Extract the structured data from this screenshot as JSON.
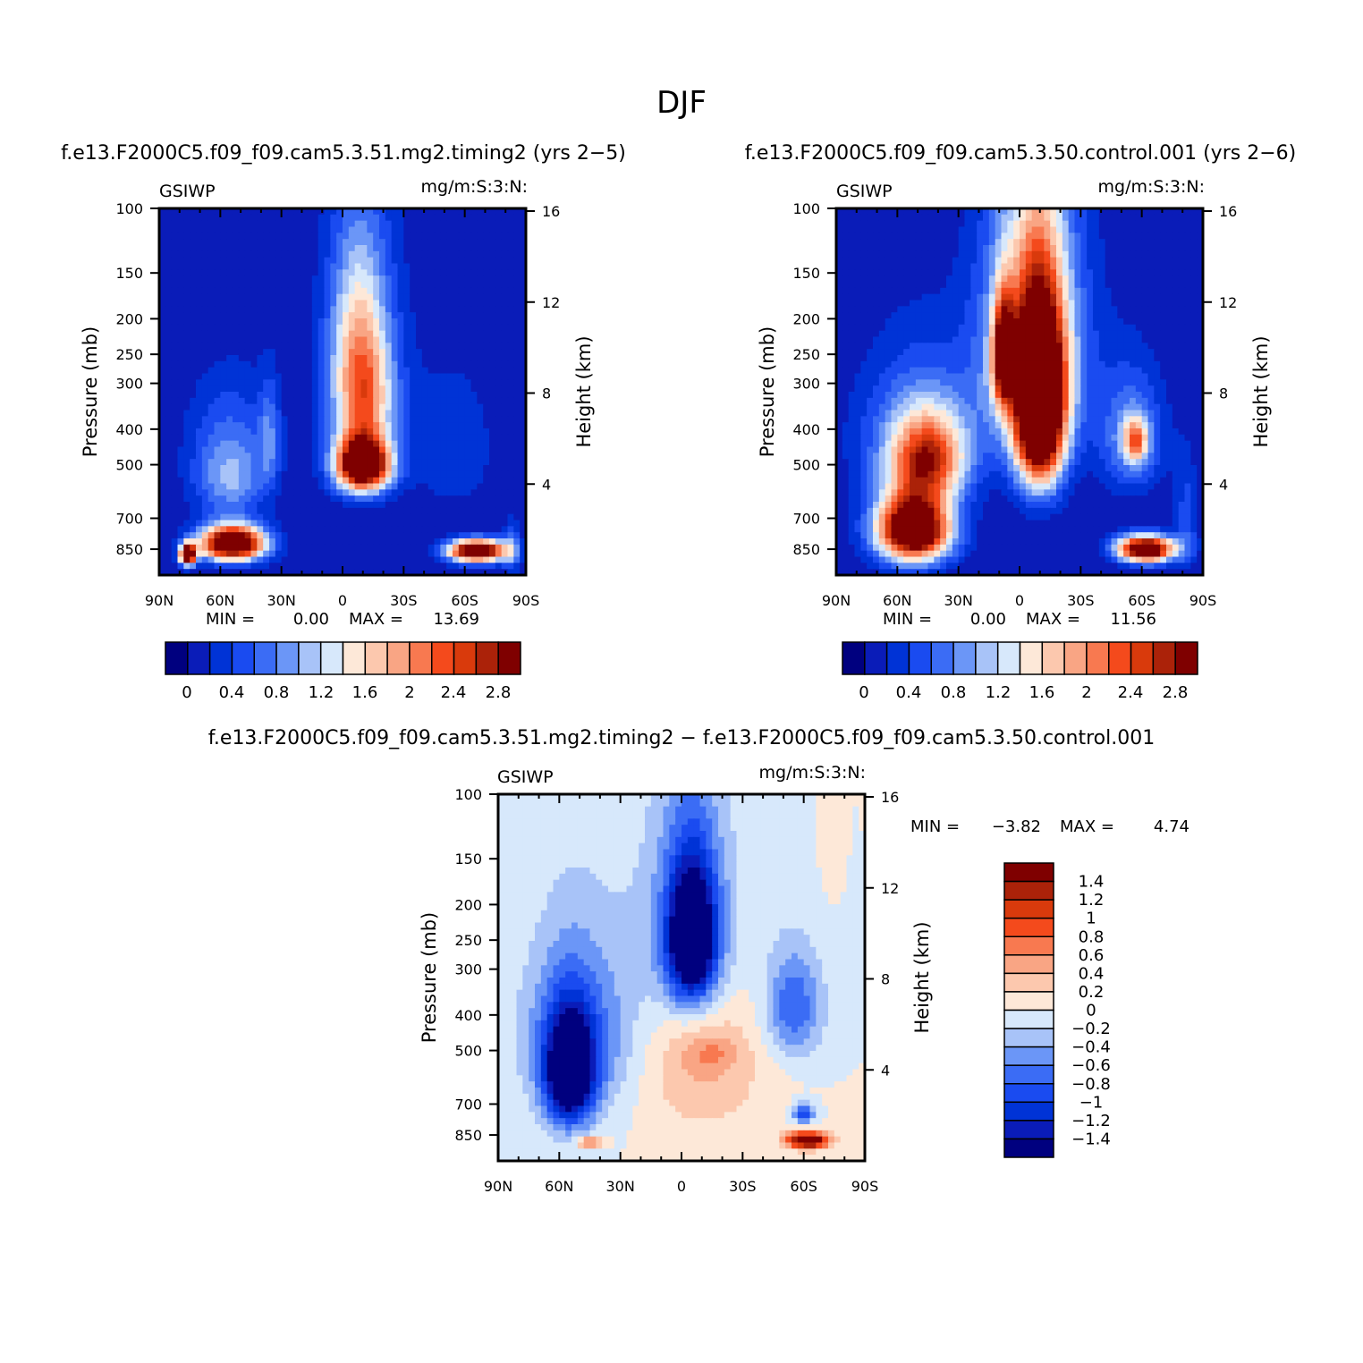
{
  "page_title": "DJF",
  "chart_data": [
    {
      "type": "heatmap",
      "title": "f.e13.F2000C5.f09_f09.cam5.3.51.mg2.timing2 (yrs 2−5)",
      "left_label": "GSIWP",
      "right_label": "mg/m:S:3:N:",
      "ylabel": "Pressure (mb)",
      "y2label": "Height (km)",
      "x_ticks": [
        "90N",
        "60N",
        "30N",
        "0",
        "30S",
        "60S",
        "90S"
      ],
      "x_values": [
        -90,
        -60,
        -30,
        0,
        30,
        60,
        90
      ],
      "y_ticks": [
        "100",
        "150",
        "200",
        "250",
        "300",
        "400",
        "500",
        "700",
        "850"
      ],
      "y_values": [
        100,
        150,
        200,
        250,
        300,
        400,
        500,
        700,
        850
      ],
      "y2_ticks": [
        "16",
        "12",
        "8",
        "4"
      ],
      "y2_values": [
        16,
        12,
        8,
        4
      ],
      "ylim": [
        100,
        1000
      ],
      "min_label": "MIN =",
      "min_value": "0.00",
      "max_label": "MAX =",
      "max_value": "13.69",
      "colorbar_labels": [
        "0",
        "0.4",
        "0.8",
        "1.2",
        "1.6",
        "2",
        "2.4",
        "2.8"
      ],
      "features": [
        {
          "lat": 10,
          "p": 500,
          "value": 4.0,
          "sx": 13,
          "sp": 85
        },
        {
          "lat": 10,
          "p": 330,
          "value": 1.6,
          "sx": 14,
          "sp": 110
        },
        {
          "lat": 8,
          "p": 200,
          "value": 1.0,
          "sx": 14,
          "sp": 110
        },
        {
          "lat": 10,
          "p": 300,
          "value": 0.5,
          "sx": 22,
          "sp": 260
        },
        {
          "lat": -54,
          "p": 820,
          "value": 4.0,
          "sx": 16,
          "sp": 90
        },
        {
          "lat": -76,
          "p": 880,
          "value": 3.5,
          "sx": 4,
          "sp": 60
        },
        {
          "lat": -55,
          "p": 560,
          "value": 0.9,
          "sx": 18,
          "sp": 130
        },
        {
          "lat": -55,
          "p": 400,
          "value": 0.5,
          "sx": 22,
          "sp": 150
        },
        {
          "lat": -36,
          "p": 420,
          "value": 0.6,
          "sx": 5,
          "sp": 140
        },
        {
          "lat": 66,
          "p": 860,
          "value": 3.8,
          "sx": 14,
          "sp": 60
        },
        {
          "lat": 55,
          "p": 450,
          "value": 0.35,
          "sx": 22,
          "sp": 220
        },
        {
          "lat": 83,
          "p": 850,
          "value": 0.7,
          "sx": 4,
          "sp": 150
        }
      ]
    },
    {
      "type": "heatmap",
      "title": "f.e13.F2000C5.f09_f09.cam5.3.50.control.001 (yrs 2−6)",
      "left_label": "GSIWP",
      "right_label": "mg/m:S:3:N:",
      "ylabel": "Pressure (mb)",
      "y2label": "Height (km)",
      "x_ticks": [
        "90N",
        "60N",
        "30N",
        "0",
        "30S",
        "60S",
        "90S"
      ],
      "x_values": [
        -90,
        -60,
        -30,
        0,
        30,
        60,
        90
      ],
      "y_ticks": [
        "100",
        "150",
        "200",
        "250",
        "300",
        "400",
        "500",
        "700",
        "850"
      ],
      "y_values": [
        100,
        150,
        200,
        250,
        300,
        400,
        500,
        700,
        850
      ],
      "y2_ticks": [
        "16",
        "12",
        "8",
        "4"
      ],
      "y2_values": [
        16,
        12,
        8,
        4
      ],
      "ylim": [
        100,
        1000
      ],
      "min_label": "MIN =",
      "min_value": "0.00",
      "max_label": "MAX =",
      "max_value": "11.56",
      "colorbar_labels": [
        "0",
        "0.4",
        "0.8",
        "1.2",
        "1.6",
        "2",
        "2.4",
        "2.8"
      ],
      "features": [
        {
          "lat": 10,
          "p": 360,
          "value": 4.0,
          "sx": 12,
          "sp": 200
        },
        {
          "lat": -8,
          "p": 250,
          "value": 2.6,
          "sx": 5,
          "sp": 80
        },
        {
          "lat": 5,
          "p": 250,
          "value": 1.3,
          "sx": 22,
          "sp": 180
        },
        {
          "lat": 8,
          "p": 220,
          "value": 0.6,
          "sx": 28,
          "sp": 220
        },
        {
          "lat": -52,
          "p": 750,
          "value": 4.0,
          "sx": 18,
          "sp": 160
        },
        {
          "lat": -45,
          "p": 480,
          "value": 2.0,
          "sx": 18,
          "sp": 130
        },
        {
          "lat": -50,
          "p": 420,
          "value": 0.8,
          "sx": 30,
          "sp": 200
        },
        {
          "lat": 62,
          "p": 850,
          "value": 3.8,
          "sx": 14,
          "sp": 70
        },
        {
          "lat": 57,
          "p": 430,
          "value": 1.5,
          "sx": 6,
          "sp": 60
        },
        {
          "lat": 55,
          "p": 420,
          "value": 0.9,
          "sx": 16,
          "sp": 160
        },
        {
          "lat": 82,
          "p": 700,
          "value": 0.5,
          "sx": 6,
          "sp": 250
        }
      ]
    },
    {
      "type": "heatmap",
      "title": "f.e13.F2000C5.f09_f09.cam5.3.51.mg2.timing2 − f.e13.F2000C5.f09_f09.cam5.3.50.control.001",
      "left_label": "GSIWP",
      "right_label": "mg/m:S:3:N:",
      "ylabel": "Pressure (mb)",
      "y2label": "Height (km)",
      "x_ticks": [
        "90N",
        "60N",
        "30N",
        "0",
        "30S",
        "60S",
        "90S"
      ],
      "x_values": [
        -90,
        -60,
        -30,
        0,
        30,
        60,
        90
      ],
      "y_ticks": [
        "100",
        "150",
        "200",
        "250",
        "300",
        "400",
        "500",
        "700",
        "850"
      ],
      "y_values": [
        100,
        150,
        200,
        250,
        300,
        400,
        500,
        700,
        850
      ],
      "y2_ticks": [
        "16",
        "12",
        "8",
        "4"
      ],
      "y2_values": [
        16,
        12,
        8,
        4
      ],
      "ylim": [
        100,
        1000
      ],
      "min_label": "MIN =",
      "min_value": "−3.82",
      "max_label": "MAX =",
      "max_value": "4.74",
      "colorbar_labels": [
        "1.4",
        "1.2",
        "1",
        "0.8",
        "0.6",
        "0.4",
        "0.2",
        "0",
        "−0.2",
        "−0.4",
        "−0.6",
        "−0.8",
        "−1",
        "−1.2",
        "−1.4"
      ],
      "features": [
        {
          "lat": 5,
          "p": 250,
          "value": -2.0,
          "sx": 12,
          "sp": 110
        },
        {
          "lat": 5,
          "p": 230,
          "value": -0.6,
          "sx": 25,
          "sp": 180
        },
        {
          "lat": -55,
          "p": 580,
          "value": -2.0,
          "sx": 12,
          "sp": 200
        },
        {
          "lat": -50,
          "p": 450,
          "value": -0.7,
          "sx": 28,
          "sp": 250
        },
        {
          "lat": 55,
          "p": 380,
          "value": -0.8,
          "sx": 14,
          "sp": 130
        },
        {
          "lat": 10,
          "p": 520,
          "value": 0.45,
          "sx": 30,
          "sp": 280
        },
        {
          "lat": 15,
          "p": 510,
          "value": 0.3,
          "sx": 12,
          "sp": 50
        },
        {
          "lat": 62,
          "p": 880,
          "value": 2.0,
          "sx": 10,
          "sp": 45
        },
        {
          "lat": -45,
          "p": 890,
          "value": 0.9,
          "sx": 6,
          "sp": 30
        },
        {
          "lat": 60,
          "p": 740,
          "value": -1.0,
          "sx": 5,
          "sp": 45
        },
        {
          "lat": 73,
          "p": 140,
          "value": 0.15,
          "sx": 4,
          "sp": 40
        }
      ]
    }
  ]
}
